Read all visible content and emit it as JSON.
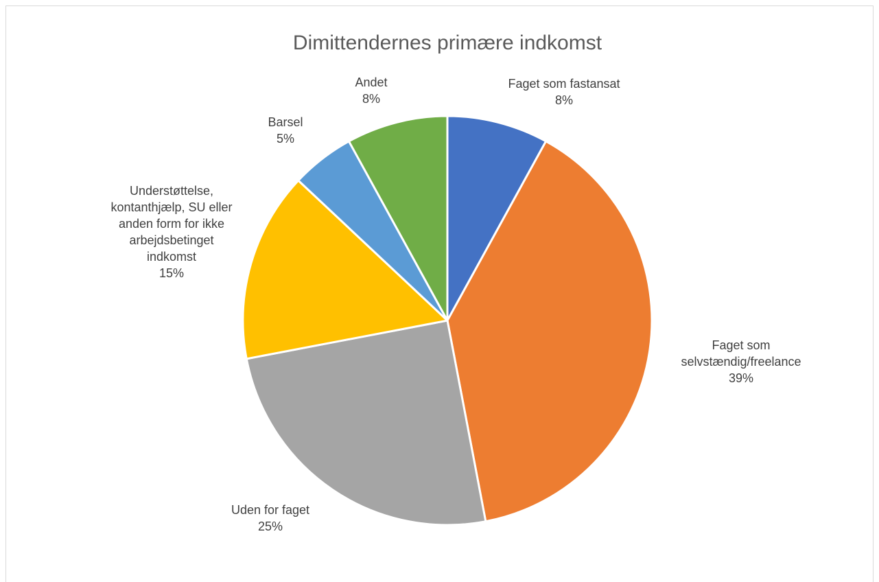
{
  "chart_data": {
    "type": "pie",
    "title": "Dimittendernes primære indkomst",
    "start_angle_deg": 0,
    "direction": "clockwise",
    "slices": [
      {
        "name": "Faget som fastansat",
        "value": 8,
        "label": "8%",
        "color": "#4472C4",
        "name_lines": [
          "Faget som fastansat"
        ]
      },
      {
        "name": "Faget som selvstændig/freelance",
        "value": 39,
        "label": "39%",
        "color": "#ED7D31",
        "name_lines": [
          "Faget som",
          "selvstændig/freelance"
        ]
      },
      {
        "name": "Uden for faget",
        "value": 25,
        "label": "25%",
        "color": "#A5A5A5",
        "name_lines": [
          "Uden for faget"
        ]
      },
      {
        "name": "Understøttelse, kontanthjælp, SU eller anden form for ikke arbejdsbetinget indkomst",
        "value": 15,
        "label": "15%",
        "color": "#FFC000",
        "name_lines": [
          "Understøttelse,",
          "kontanthjælp, SU eller",
          "anden form for ikke",
          "arbejdsbetinget",
          "indkomst"
        ]
      },
      {
        "name": "Barsel",
        "value": 5,
        "label": "5%",
        "color": "#5B9BD5",
        "name_lines": [
          "Barsel"
        ]
      },
      {
        "name": "Andet",
        "value": 8,
        "label": "8%",
        "color": "#70AD47",
        "name_lines": [
          "Andet"
        ]
      }
    ]
  }
}
